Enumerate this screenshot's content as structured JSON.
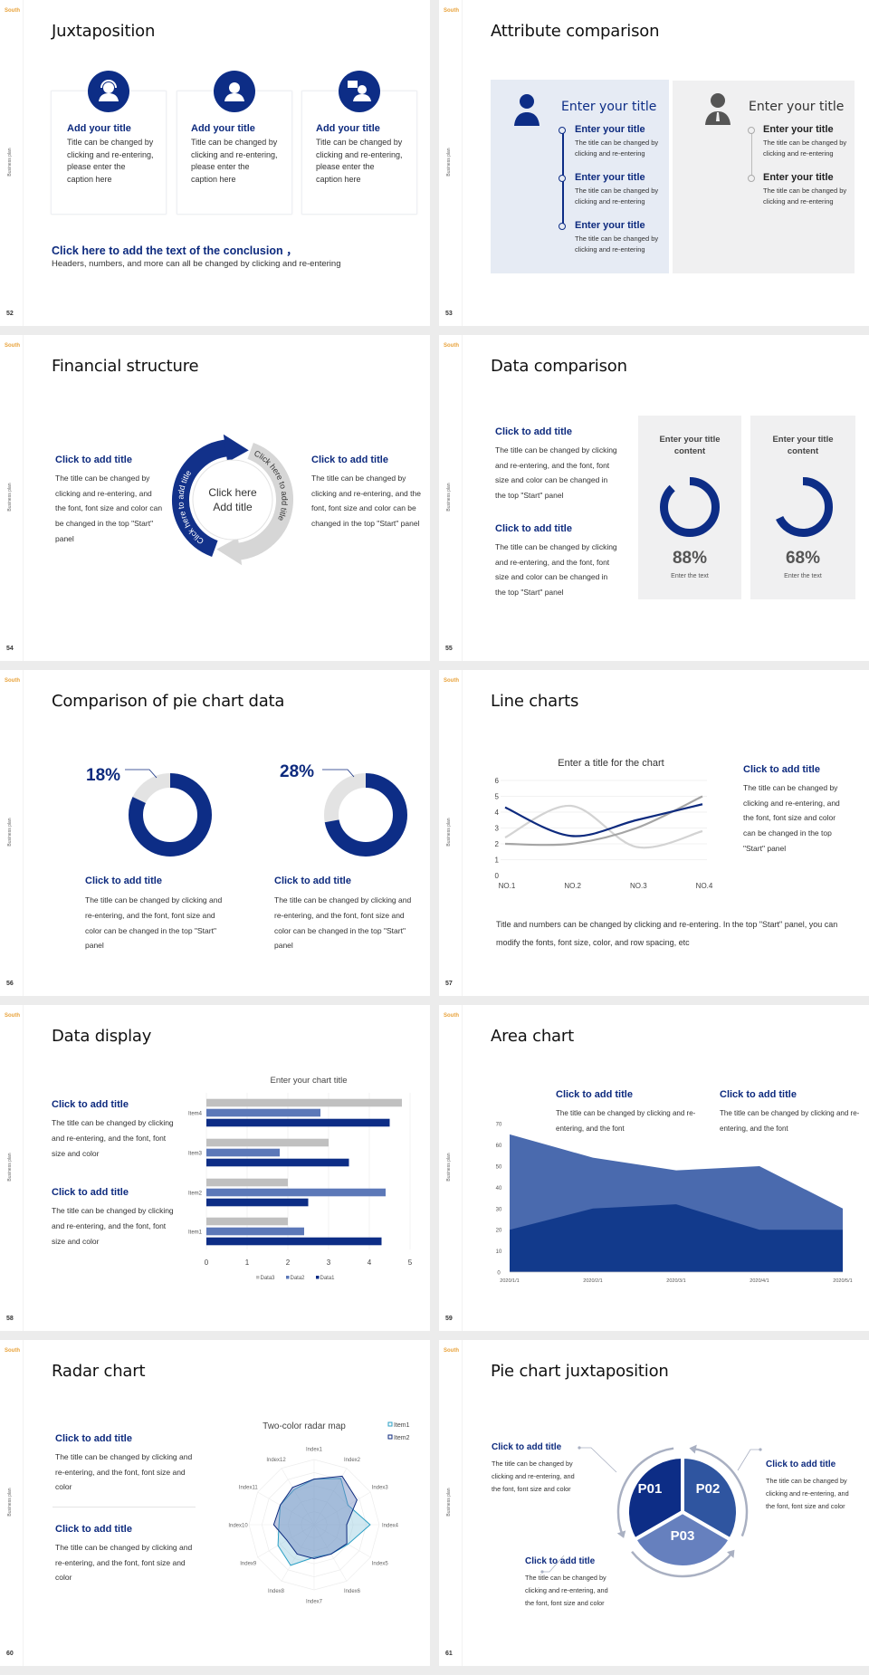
{
  "brand": {
    "logo": "South",
    "side_label": "Business plan"
  },
  "colors": {
    "navy": "#0d2d86",
    "mid_blue": "#4a6aae",
    "light_blue": "#6f88c0",
    "gray": "#c0c0c0",
    "panel_blue": "#e6ebf4",
    "panel_gray": "#f0f0f1",
    "logo_orange": "#e8a23a"
  },
  "s52": {
    "page": "52",
    "title": "Juxtaposition",
    "cards": [
      {
        "icon": "headset-agent-icon",
        "title": "Add your title",
        "body": "Title can be changed by clicking and re-entering, please enter the caption here"
      },
      {
        "icon": "user-icon",
        "title": "Add your title",
        "body": "Title can be changed by clicking and re-entering, please enter the caption here"
      },
      {
        "icon": "user-chat-icon",
        "title": "Add your title",
        "body": "Title can be changed by clicking and re-entering, please enter the caption here"
      }
    ],
    "conclusion_title": "Click here to add the text of the conclusion ，",
    "conclusion_body": "Headers, numbers, and more can all be changed by clicking and re-entering"
  },
  "s53": {
    "page": "53",
    "title": "Attribute comparison",
    "panels": [
      {
        "header": "Enter your title",
        "items": [
          {
            "title": "Enter your title",
            "body": "The title can be changed by clicking and re-entering"
          },
          {
            "title": "Enter your title",
            "body": "The title can be changed by clicking and re-entering"
          },
          {
            "title": "Enter your title",
            "body": "The title can be changed by clicking and re-entering"
          }
        ]
      },
      {
        "header": "Enter your title",
        "items": [
          {
            "title": "Enter your title",
            "body": "The title can be changed by clicking and re-entering"
          },
          {
            "title": "Enter your title",
            "body": "The title can be changed by clicking and re-entering"
          }
        ]
      }
    ]
  },
  "s54": {
    "page": "54",
    "title": "Financial structure",
    "left": {
      "title": "Click to add title",
      "body": "The title can be changed by clicking and re-entering, and the font, font size and color can be changed in the top \"Start\" panel"
    },
    "right": {
      "title": "Click to add title",
      "body": "The title can be changed by clicking and re-entering, and the font, font size and color can be changed in the top \"Start\" panel"
    },
    "center_line1": "Click here",
    "center_line2": "Add title",
    "arc_blue": "Click here to add title",
    "arc_gray": "Click here to add title"
  },
  "s55": {
    "page": "55",
    "title": "Data comparison",
    "blocks": [
      {
        "title": "Click to add title",
        "body": "The title can be changed by clicking and re-entering, and the font, font size and color can be changed in the top \"Start\" panel"
      },
      {
        "title": "Click to add title",
        "body": "The title can be changed by clicking and re-entering, and the font, font size and color can be changed in the top \"Start\" panel"
      }
    ],
    "cards": [
      {
        "title": "Enter your title content",
        "value": "88%",
        "caption": "Enter the text"
      },
      {
        "title": "Enter your title content",
        "value": "68%",
        "caption": "Enter the text"
      }
    ]
  },
  "s56": {
    "page": "56",
    "title": "Comparison of pie chart data",
    "items": [
      {
        "label": "18%",
        "title": "Click to add title",
        "body": "The title can be changed by clicking and re-entering, and the font, font size and color can be changed in the top \"Start\" panel"
      },
      {
        "label": "28%",
        "title": "Click to add title",
        "body": "The title can be changed by clicking and re-entering, and the font, font size and color can be changed in the top \"Start\" panel"
      }
    ]
  },
  "s57": {
    "page": "57",
    "title": "Line charts",
    "side": {
      "title": "Click to add title",
      "body": "The title can be changed by clicking and re-entering, and the font, font size and color can be changed in the top \"Start\" panel"
    },
    "bottom": "Title and numbers can be changed by clicking and re-entering. In the top \"Start\" panel, you can modify the fonts, font size, color, and row spacing, etc"
  },
  "s58": {
    "page": "58",
    "title": "Data display",
    "blocks": [
      {
        "title": "Click to add title",
        "body": "The title can be changed by clicking and re-entering, and the font, font size and color"
      },
      {
        "title": "Click to add title",
        "body": "The title can be changed by clicking and re-entering, and the font, font size and color"
      }
    ]
  },
  "s59": {
    "page": "59",
    "title": "Area chart",
    "blocks": [
      {
        "title": "Click to add title",
        "body": "The title can be changed by clicking and re-entering, and the font"
      },
      {
        "title": "Click to add title",
        "body": "The title can be changed by clicking and re-entering, and the font"
      }
    ]
  },
  "s60": {
    "page": "60",
    "title": "Radar chart",
    "blocks": [
      {
        "title": "Click to add title",
        "body": "The title can be changed by clicking and re-entering, and the font, font size and color"
      },
      {
        "title": "Click to add title",
        "body": "The title can be changed by clicking and re-entering, and the font, font size and color"
      }
    ]
  },
  "s61": {
    "page": "61",
    "title": "Pie chart juxtaposition",
    "segments": [
      "P01",
      "P02",
      "P03"
    ],
    "blocks": [
      {
        "title": "Click to add title",
        "body": "The title can be changed by clicking and re-entering, and the font, font size and color"
      },
      {
        "title": "Click to add title",
        "body": "The title can be changed by clicking and re-entering, and the font, font size and color"
      },
      {
        "title": "Click to add title",
        "body": "The title can be changed by clicking and re-entering, and the font, font size and color"
      }
    ]
  },
  "chart_data": [
    {
      "type": "line",
      "title": "Enter a title for the chart",
      "categories": [
        "NO.1",
        "NO.2",
        "NO.3",
        "NO.4"
      ],
      "yticks": [
        0,
        1,
        2,
        3,
        4,
        5,
        6
      ],
      "ylim": [
        0,
        6
      ],
      "grid": true,
      "smooth": true,
      "series": [
        {
          "color": "#0d2a7e",
          "values": [
            4.3,
            2.5,
            3.5,
            4.5
          ]
        },
        {
          "color": "#d3d3d3",
          "values": [
            2.4,
            4.4,
            1.8,
            2.8
          ]
        },
        {
          "color": "#a5a5a5",
          "values": [
            2,
            2,
            3,
            5
          ]
        }
      ]
    },
    {
      "type": "bar",
      "orientation": "horizontal",
      "title": "Enter your chart title",
      "categories": [
        "Item1",
        "Item2",
        "Item3",
        "Item4"
      ],
      "xticks": [
        0,
        1,
        2,
        3,
        4,
        5
      ],
      "xlim": [
        0,
        5
      ],
      "grid": true,
      "legend": "bottom",
      "series": [
        {
          "name": "Data1",
          "color": "#0d2d86",
          "values": [
            4.3,
            2.5,
            3.5,
            4.5
          ]
        },
        {
          "name": "Data2",
          "color": "#5c78b8",
          "values": [
            2.4,
            4.4,
            1.8,
            2.8
          ]
        },
        {
          "name": "Data3",
          "color": "#c0c0c0",
          "values": [
            2,
            2,
            3,
            4.8
          ]
        }
      ],
      "legend_order": [
        2,
        1,
        0
      ]
    },
    {
      "type": "area",
      "categories": [
        "2020/1/1",
        "2020/2/1",
        "2020/3/1",
        "2020/4/1",
        "2020/5/1"
      ],
      "yticks": [
        0,
        10,
        20,
        30,
        40,
        50,
        60,
        70
      ],
      "ylim": [
        0,
        70
      ],
      "series": [
        {
          "color": "#4a6aae",
          "values": [
            65,
            54,
            48,
            50,
            30
          ]
        },
        {
          "color": "#123a8c",
          "values": [
            20,
            30,
            32,
            20,
            20
          ]
        }
      ]
    },
    {
      "type": "radar",
      "title": "Two-color radar map",
      "legend": "top-right",
      "categories": [
        "Index1",
        "Index2",
        "Index3",
        "Index4",
        "Index5",
        "Index6",
        "Index7",
        "Index8",
        "Index9",
        "Index10",
        "Index11",
        "Index12"
      ],
      "rlim": [
        0,
        5
      ],
      "series": [
        {
          "name": "Item1",
          "color": "#2a9fc4",
          "values": [
            3.5,
            4.1,
            3.0,
            4.3,
            3.0,
            2.6,
            2.5,
            3.6,
            3.2,
            2.7,
            3.0,
            3.1
          ]
        },
        {
          "name": "Item2",
          "color": "#0d2a7e",
          "values": [
            3.5,
            4.3,
            3.8,
            2.5,
            2.9,
            2.6,
            2.6,
            2.6,
            2.4,
            3.1,
            3.0,
            3.3
          ]
        }
      ]
    },
    {
      "type": "pie",
      "variant": "donut",
      "values": [
        88,
        12
      ]
    },
    {
      "type": "pie",
      "variant": "donut",
      "values": [
        68,
        32
      ]
    },
    {
      "type": "pie",
      "variant": "donut",
      "values": [
        82,
        18
      ]
    },
    {
      "type": "pie",
      "variant": "donut",
      "values": [
        72,
        28
      ]
    }
  ]
}
